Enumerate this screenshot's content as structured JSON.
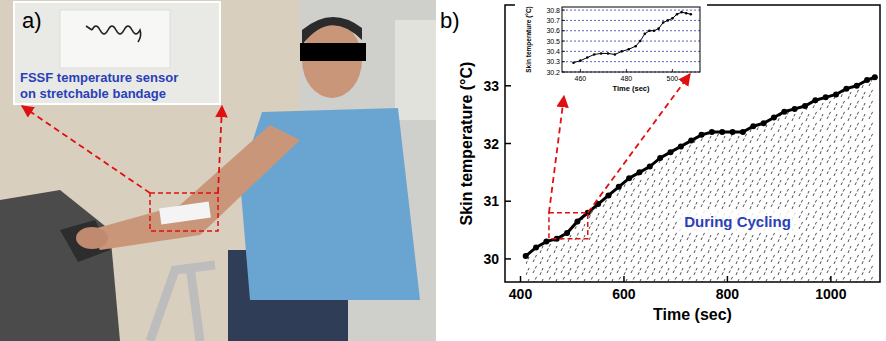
{
  "photo": {
    "label": "a)",
    "caption": [
      "FSSF temperature sensor",
      "on stretchable bandage"
    ]
  },
  "chart_data": [
    {
      "type": "line",
      "panel_label": "b)",
      "xlabel": "Time (sec)",
      "ylabel": "Skin temperature (°C)",
      "annotations": [
        "During Cycling"
      ],
      "x": [
        410,
        430,
        450,
        470,
        490,
        510,
        530,
        550,
        570,
        590,
        610,
        630,
        650,
        670,
        690,
        710,
        730,
        750,
        770,
        790,
        810,
        830,
        850,
        870,
        890,
        910,
        930,
        950,
        970,
        990,
        1010,
        1030,
        1050,
        1070,
        1085
      ],
      "values": [
        30.05,
        30.2,
        30.3,
        30.35,
        30.45,
        30.65,
        30.8,
        30.95,
        31.1,
        31.25,
        31.4,
        31.5,
        31.6,
        31.75,
        31.85,
        31.95,
        32.05,
        32.15,
        32.2,
        32.2,
        32.2,
        32.2,
        32.3,
        32.35,
        32.45,
        32.55,
        32.6,
        32.65,
        32.75,
        32.8,
        32.85,
        32.95,
        33.0,
        33.1,
        33.15
      ],
      "color": "#000000",
      "marker": "circle",
      "grid": false,
      "xlim": [
        370,
        1095
      ],
      "xticks": [
        400,
        600,
        800,
        1000
      ],
      "ylim": [
        29.6,
        34.4
      ],
      "yticks": [
        30,
        31,
        32,
        33
      ],
      "highlight": {
        "xlim": [
          455,
          530
        ],
        "ylim": [
          30.35,
          30.8
        ]
      }
    },
    {
      "type": "line",
      "xlabel": "Time (sec)",
      "ylabel": "Skin temperature (°C)",
      "x": [
        457,
        460,
        463,
        466,
        469,
        472,
        475,
        478,
        481,
        484,
        486,
        488,
        490,
        492,
        494,
        496,
        498,
        500,
        502,
        504,
        506,
        508
      ],
      "values": [
        30.29,
        30.31,
        30.34,
        30.37,
        30.38,
        30.38,
        30.37,
        30.4,
        30.42,
        30.45,
        30.5,
        30.57,
        30.6,
        30.6,
        30.62,
        30.68,
        30.7,
        30.72,
        30.76,
        30.78,
        30.77,
        30.76
      ],
      "color": "#000000",
      "marker": "circle",
      "grid": true,
      "xlim": [
        452,
        512
      ],
      "xticks": [
        460,
        480,
        500
      ],
      "ylim": [
        30.2,
        30.83
      ],
      "yticks": [
        30.2,
        30.3,
        30.4,
        30.5,
        30.6,
        30.7,
        30.8
      ]
    }
  ]
}
